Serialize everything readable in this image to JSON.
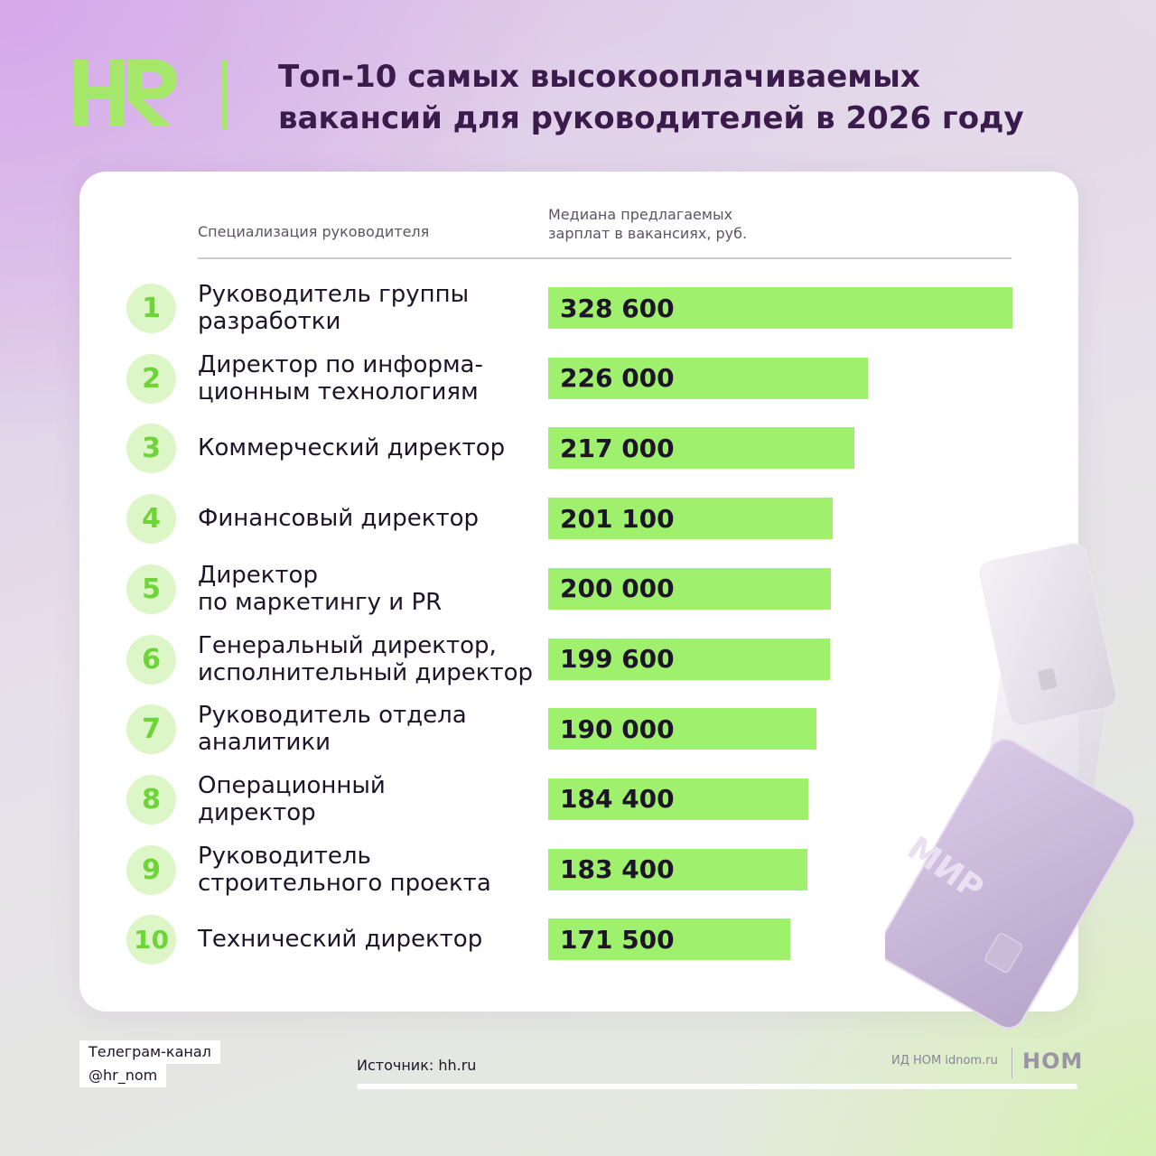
{
  "header": {
    "logo_text": "HR",
    "title_line1": "Топ-10 самых высокооплачиваемых",
    "title_line2": "вакансий для руководителей в 2026 году"
  },
  "table_headers": {
    "specialization": "Специализация руководителя",
    "median_line1": "Медиана предлагаемых",
    "median_line2": "зарплат в вакансиях, руб."
  },
  "colors": {
    "accent_green": "#9ff06c",
    "rank_circle": "#dcf6c8",
    "rank_text": "#6fd43a",
    "title_color": "#3a1b4c"
  },
  "chart_data": {
    "type": "bar",
    "orientation": "horizontal",
    "title": "Топ-10 самых высокооплачиваемых вакансий для руководителей в 2026 году",
    "xlabel": "Медиана предлагаемых зарплат в вакансиях, руб.",
    "ylabel": "Специализация руководителя",
    "xlim": [
      0,
      328600
    ],
    "grid": false,
    "legend": "none",
    "categories": [
      "Руководитель группы разработки",
      "Директор по информационным технологиям",
      "Коммерческий директор",
      "Финансовый директор",
      "Директор по маркетингу и PR",
      "Генеральный директор, исполнительный директор",
      "Руководитель отдела аналитики",
      "Операционный директор",
      "Руководитель строительного проекта",
      "Технический директор"
    ],
    "values": [
      328600,
      226000,
      217000,
      201100,
      200000,
      199600,
      190000,
      184400,
      183400,
      171500
    ],
    "rows": [
      {
        "rank": "1",
        "label_lines": [
          "Руководитель группы",
          "разработки"
        ],
        "value_label": "328 600"
      },
      {
        "rank": "2",
        "label_lines": [
          "Директор по информа-",
          "ционным технологиям"
        ],
        "value_label": "226 000"
      },
      {
        "rank": "3",
        "label_lines": [
          "Коммерческий директор"
        ],
        "value_label": "217 000"
      },
      {
        "rank": "4",
        "label_lines": [
          "Финансовый директор"
        ],
        "value_label": "201 100"
      },
      {
        "rank": "5",
        "label_lines": [
          "Директор",
          "по маркетингу и PR"
        ],
        "value_label": "200 000"
      },
      {
        "rank": "6",
        "label_lines": [
          "Генеральный директор,",
          "исполнительный директор"
        ],
        "value_label": "199 600"
      },
      {
        "rank": "7",
        "label_lines": [
          "Руководитель отдела",
          "аналитики"
        ],
        "value_label": "190 000"
      },
      {
        "rank": "8",
        "label_lines": [
          "Операционный",
          "директор"
        ],
        "value_label": "184 400"
      },
      {
        "rank": "9",
        "label_lines": [
          "Руководитель",
          "строительного проекта"
        ],
        "value_label": "183 400"
      },
      {
        "rank": "10",
        "label_lines": [
          "Технический директор"
        ],
        "value_label": "171 500"
      }
    ]
  },
  "footer": {
    "telegram_line1": "Телеграм-канал",
    "telegram_line2": "@hr_nom",
    "source": "Источник: hh.ru",
    "publisher": "ИД НОМ idnom.ru",
    "publisher_logo": "НОМ"
  },
  "decoration": {
    "card_brand": "МИР",
    "icons": [
      "credit-card-icon"
    ]
  }
}
